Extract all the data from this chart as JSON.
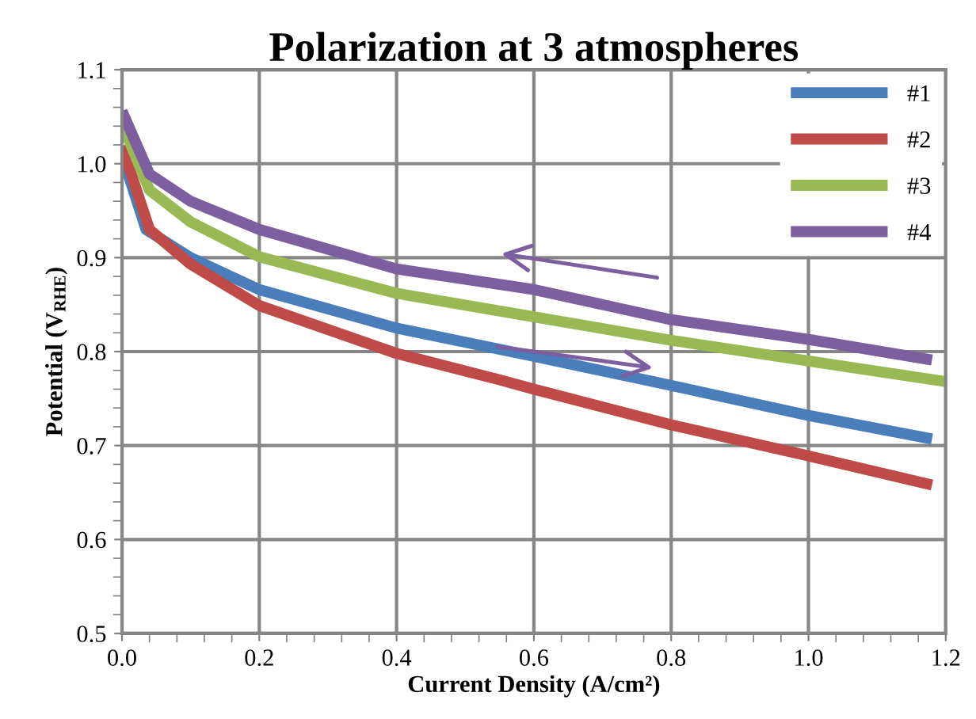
{
  "chart_data": {
    "type": "line",
    "title": "Polarization at 3 atmospheres",
    "xlabel": "Current Density (A/cm²)",
    "ylabel": "Potential (V$_{RHE}$)",
    "xlim": [
      0,
      1.2
    ],
    "xticks": [
      {
        "value": 0,
        "label": "0.0"
      },
      0.2,
      0.4,
      0.6,
      0.8,
      {
        "value": 1,
        "label": "1.0"
      },
      1.2
    ],
    "ylim": [
      0.5,
      1.1
    ],
    "yticks": [
      0.5,
      0.6,
      0.7,
      0.8,
      0.9,
      {
        "value": 1,
        "label": "1.0"
      },
      1.1
    ],
    "grid": true,
    "legend": "top right",
    "marker": "none",
    "line_style": "solid",
    "series": [
      {
        "name": "#1",
        "color": "#4a7ebb",
        "x": [
          0,
          0.035,
          0.1,
          0.2,
          0.4,
          0.6,
          0.8,
          1.0,
          1.18
        ],
        "values": [
          1.009,
          0.93,
          0.9,
          0.866,
          0.825,
          0.795,
          0.764,
          0.732,
          0.707
        ]
      },
      {
        "name": "#2",
        "color": "#be4b48",
        "x": [
          0,
          0.04,
          0.1,
          0.2,
          0.4,
          0.55,
          0.6,
          0.8,
          1.0,
          1.18
        ],
        "values": [
          1.019,
          0.93,
          0.893,
          0.849,
          0.798,
          0.77,
          0.76,
          0.722,
          0.689,
          0.658
        ]
      },
      {
        "name": "#3",
        "color": "#98b954",
        "x": [
          0,
          0.04,
          0.1,
          0.2,
          0.4,
          0.6,
          0.8,
          1.0,
          1.2
        ],
        "values": [
          1.043,
          0.972,
          0.938,
          0.901,
          0.862,
          0.837,
          0.812,
          0.79,
          0.768
        ]
      },
      {
        "name": "#4",
        "color": "#7d5fa0",
        "x": [
          0,
          0.04,
          0.1,
          0.2,
          0.4,
          0.6,
          0.8,
          1.0,
          1.18
        ],
        "values": [
          1.056,
          0.989,
          0.96,
          0.93,
          0.888,
          0.866,
          0.834,
          0.813,
          0.791
        ]
      }
    ]
  }
}
